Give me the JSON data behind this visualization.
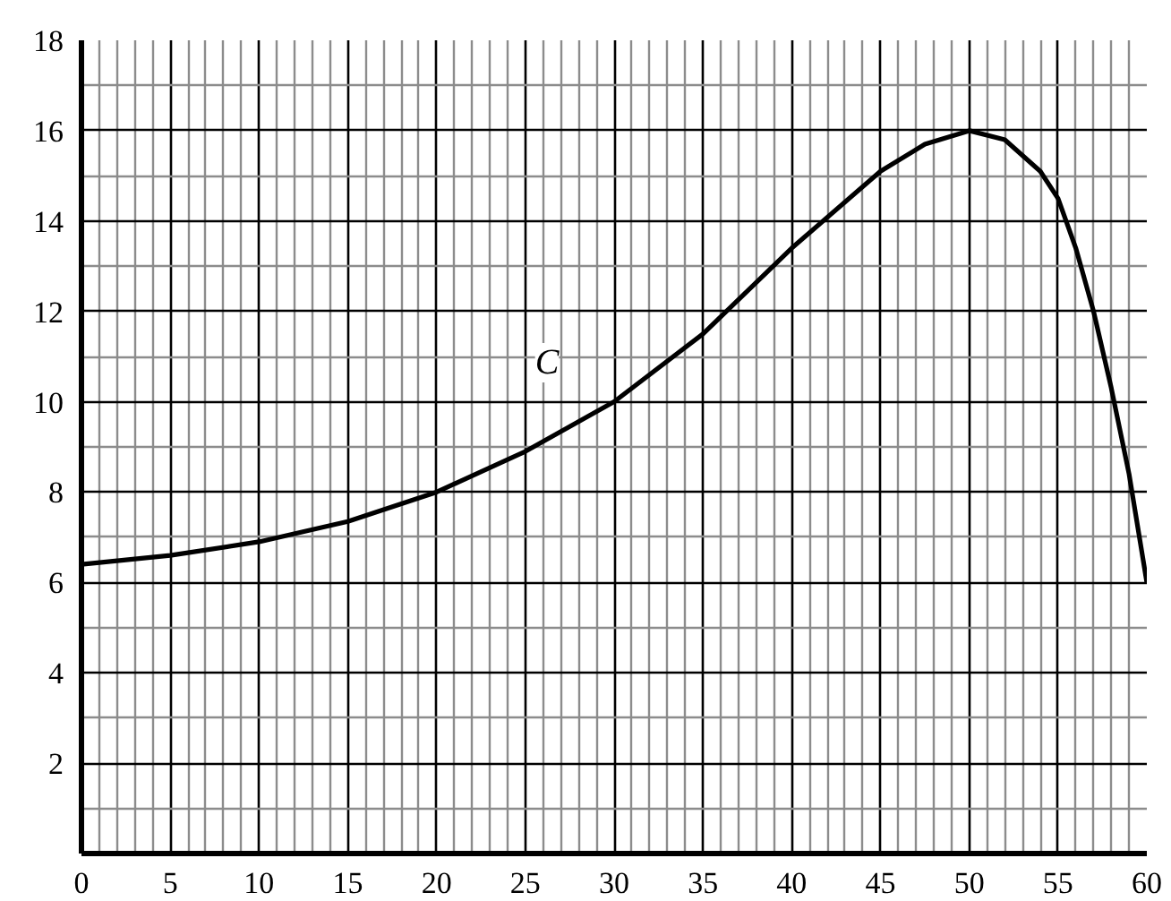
{
  "chart_data": {
    "type": "line",
    "x": [
      0,
      5,
      10,
      15,
      20,
      25,
      30,
      35,
      40,
      45,
      47.5,
      50,
      52,
      54,
      55,
      56,
      57,
      58,
      59,
      60
    ],
    "series": [
      {
        "color": "#000000",
        "values": [
          6.4,
          6.6,
          6.9,
          7.35,
          8,
          8.9,
          10,
          11.5,
          13.4,
          15.1,
          15.7,
          16,
          15.8,
          15.1,
          14.5,
          13.4,
          12,
          10.3,
          8.4,
          6
        ]
      }
    ],
    "xlim": [
      0,
      60
    ],
    "ylim": [
      0,
      18
    ],
    "xticks": [
      {
        "value": 0,
        "label": "0"
      },
      5,
      10,
      15,
      20,
      25,
      30,
      35,
      40,
      45,
      50,
      55,
      60
    ],
    "yticks": [
      2,
      4,
      6,
      8,
      10,
      12,
      14,
      16,
      18
    ],
    "annotations": [
      "C"
    ],
    "grid": true,
    "marker": "none",
    "line_style": "solid"
  }
}
